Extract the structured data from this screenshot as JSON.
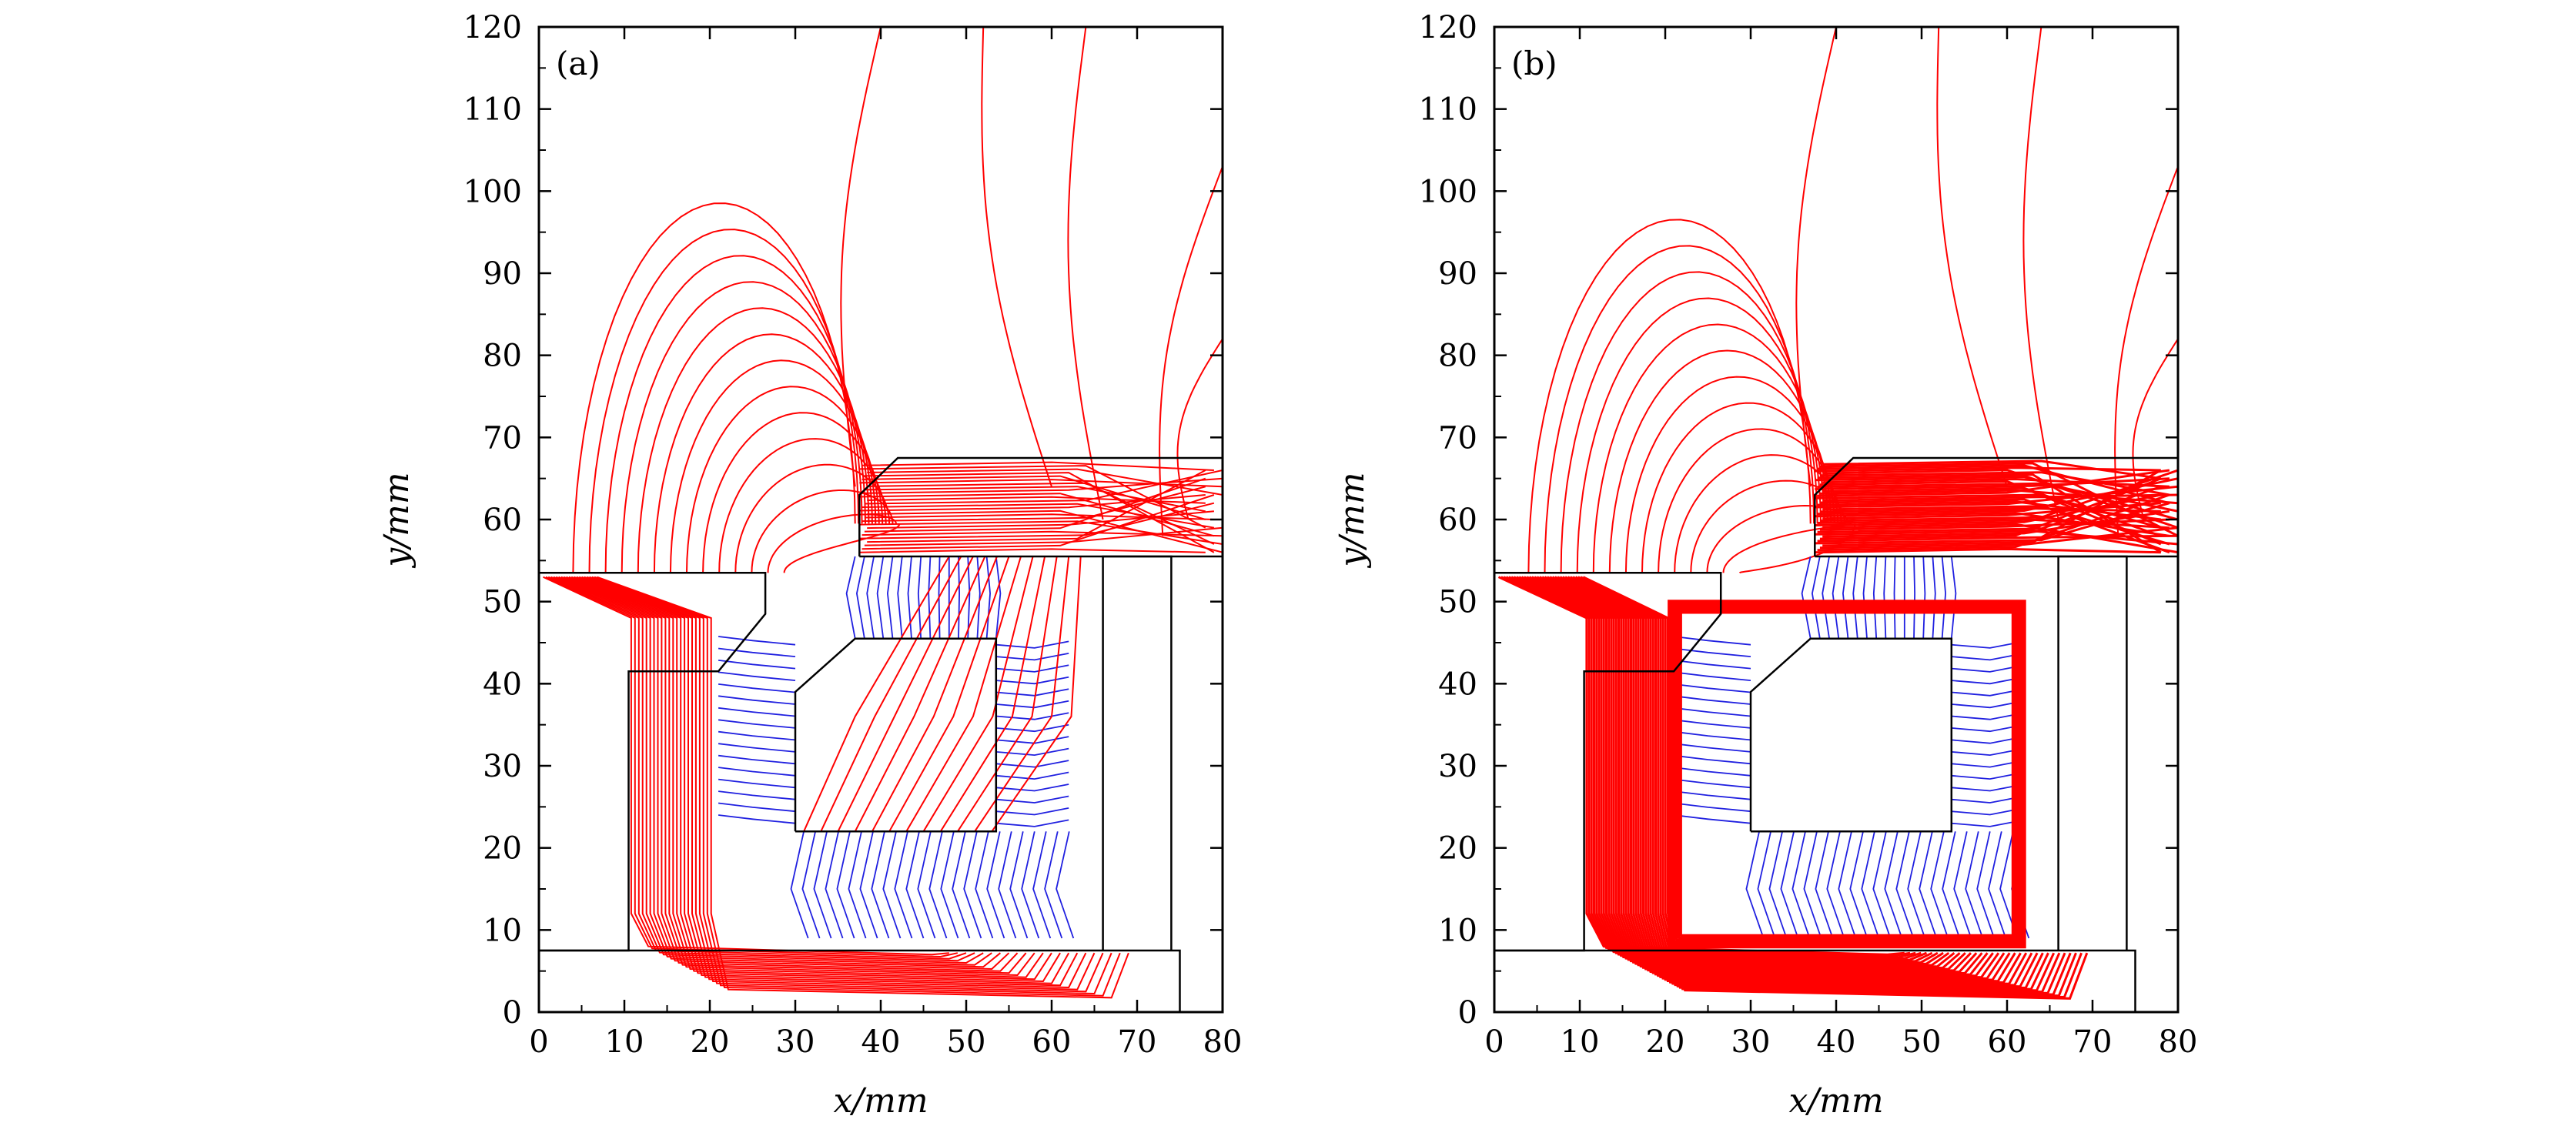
{
  "chart_data": [
    {
      "type": "line",
      "panel_label": "(a)",
      "xlabel": "x/mm",
      "ylabel": "y/mm",
      "xlim": [
        0,
        80
      ],
      "ylim": [
        0,
        120
      ],
      "xticks": [
        0,
        10,
        20,
        30,
        40,
        50,
        60,
        70,
        80
      ],
      "yticks": [
        0,
        10,
        20,
        30,
        40,
        50,
        60,
        70,
        80,
        90,
        100,
        110,
        120
      ],
      "colors": {
        "field_lines_red": "#ff0000",
        "field_lines_blue": "#2020e0",
        "geometry": "#000000"
      },
      "series": [
        {
          "name": "pole-piece-outline",
          "color": "#000000",
          "x": [
            0,
            26.5,
            26.5,
            21,
            21,
            10.5,
            10.5,
            0
          ],
          "y": [
            53.5,
            53.5,
            48.5,
            41.5,
            41.5,
            41.5,
            7.5,
            7.5
          ]
        },
        {
          "name": "lens-top-block",
          "color": "#000000",
          "x": [
            37.5,
            37.5,
            42,
            80,
            80,
            37.5
          ],
          "y": [
            55.5,
            63,
            67.5,
            67.5,
            55.5,
            55.5
          ]
        },
        {
          "name": "coil-window",
          "color": "#000000",
          "x": [
            30,
            30,
            37,
            53.5,
            53.5,
            30
          ],
          "y": [
            22,
            39,
            45.5,
            45.5,
            22,
            22
          ]
        },
        {
          "name": "right-housing",
          "color": "#000000",
          "x": [
            66,
            66,
            74,
            74
          ],
          "y": [
            7.5,
            55.5,
            55.5,
            7.5
          ]
        },
        {
          "name": "bottom-plate",
          "color": "#000000",
          "x": [
            0,
            75,
            75
          ],
          "y": [
            7.5,
            7.5,
            0
          ]
        }
      ]
    },
    {
      "type": "line",
      "panel_label": "(b)",
      "xlabel": "x/mm",
      "ylabel": "y/mm",
      "xlim": [
        0,
        80
      ],
      "ylim": [
        0,
        120
      ],
      "xticks": [
        0,
        10,
        20,
        30,
        40,
        50,
        60,
        70,
        80
      ],
      "yticks": [
        0,
        10,
        20,
        30,
        40,
        50,
        60,
        70,
        80,
        90,
        100,
        110,
        120
      ],
      "colors": {
        "field_lines_red": "#ff0000",
        "field_lines_blue": "#2020e0",
        "geometry": "#000000"
      },
      "series": [
        {
          "name": "pole-piece-outline",
          "color": "#000000",
          "x": [
            0,
            26.5,
            26.5,
            21,
            21,
            10.5,
            10.5,
            0
          ],
          "y": [
            53.5,
            53.5,
            48.5,
            41.5,
            41.5,
            41.5,
            7.5,
            7.5
          ]
        },
        {
          "name": "lens-top-block",
          "color": "#000000",
          "x": [
            37.5,
            37.5,
            42,
            80,
            80,
            37.5
          ],
          "y": [
            55.5,
            63,
            67.5,
            67.5,
            55.5,
            55.5
          ]
        },
        {
          "name": "coil-window",
          "color": "#000000",
          "x": [
            30,
            30,
            37,
            53.5,
            53.5,
            30
          ],
          "y": [
            22,
            39,
            45.5,
            45.5,
            22,
            22
          ]
        },
        {
          "name": "right-housing",
          "color": "#000000",
          "x": [
            66,
            66,
            74,
            74
          ],
          "y": [
            7.5,
            55.5,
            55.5,
            7.5
          ]
        },
        {
          "name": "bottom-plate",
          "color": "#000000",
          "x": [
            0,
            75,
            75
          ],
          "y": [
            7.5,
            7.5,
            0
          ]
        },
        {
          "name": "saturated-yoke",
          "color": "#ff0000",
          "x": [
            20.5,
            20.5,
            62,
            62,
            20.5
          ],
          "y": [
            8,
            50,
            50,
            8,
            8
          ]
        }
      ]
    }
  ]
}
